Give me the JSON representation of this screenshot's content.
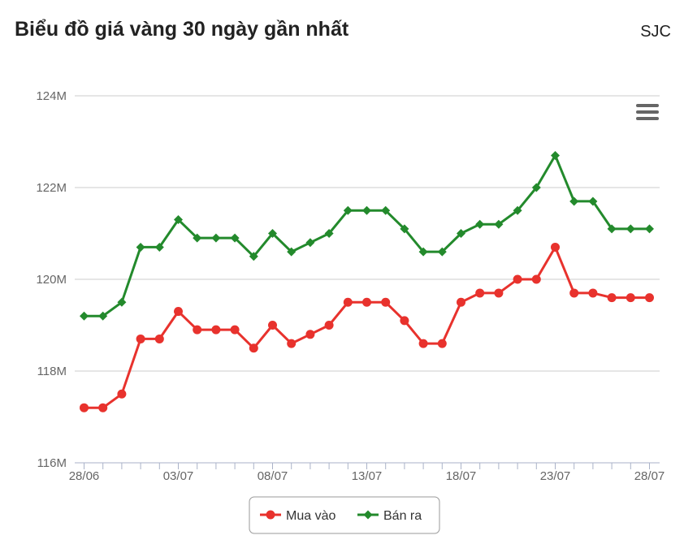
{
  "header": {
    "title": "Biểu đồ giá vàng 30 ngày gần nhất",
    "brand": "SJC"
  },
  "chart_data": {
    "type": "line",
    "ylim": [
      116,
      124
    ],
    "yticks": [
      116,
      118,
      120,
      122,
      124
    ],
    "ytick_labels": [
      "116M",
      "118M",
      "120M",
      "122M",
      "124M"
    ],
    "categories": [
      "28/06",
      "29/06",
      "30/06",
      "01/07",
      "02/07",
      "03/07",
      "04/07",
      "05/07",
      "06/07",
      "07/07",
      "08/07",
      "09/07",
      "10/07",
      "11/07",
      "12/07",
      "13/07",
      "14/07",
      "15/07",
      "16/07",
      "17/07",
      "18/07",
      "19/07",
      "20/07",
      "21/07",
      "22/07",
      "23/07",
      "24/07",
      "25/07",
      "26/07",
      "27/07",
      "28/07"
    ],
    "xtick_labels": [
      "28/06",
      "03/07",
      "08/07",
      "13/07",
      "18/07",
      "23/07",
      "28/07"
    ],
    "series": [
      {
        "name": "Mua vào",
        "color": "#e8322d",
        "marker": "circle",
        "values": [
          117.2,
          117.2,
          117.5,
          118.7,
          118.7,
          119.3,
          118.9,
          118.9,
          118.9,
          118.5,
          119.0,
          118.6,
          118.8,
          119.0,
          119.5,
          119.5,
          119.5,
          119.1,
          118.6,
          118.6,
          119.5,
          119.7,
          119.7,
          120.0,
          120.0,
          120.7,
          119.7,
          119.7,
          119.6,
          119.6,
          119.6
        ]
      },
      {
        "name": "Bán ra",
        "color": "#238a2c",
        "marker": "diamond",
        "values": [
          119.2,
          119.2,
          119.5,
          120.7,
          120.7,
          121.3,
          120.9,
          120.9,
          120.9,
          120.5,
          121.0,
          120.6,
          120.8,
          121.0,
          121.5,
          121.5,
          121.5,
          121.1,
          120.6,
          120.6,
          121.0,
          121.2,
          121.2,
          121.5,
          122.0,
          122.7,
          121.7,
          121.7,
          121.1,
          121.1,
          121.1
        ]
      }
    ],
    "grid": true,
    "legend": "bottom-center"
  },
  "icons": {
    "menu": "hamburger-menu-icon"
  }
}
